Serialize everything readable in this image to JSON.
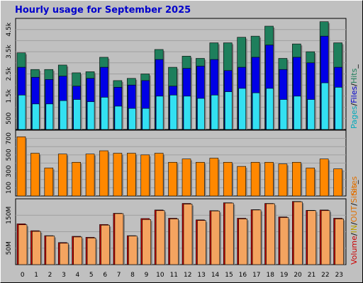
{
  "title": "Hourly usage for September 2025",
  "colors": {
    "background": "#c0c0c0",
    "plot": "#c0c0c0",
    "grid": "#a0a0a0",
    "hits": "#1e7f5c",
    "files": "#0000e6",
    "pages": "#33e0f2",
    "sites": "#ff8800",
    "kbytes_out": "#f4a460",
    "kbytes_in": "#cc0000",
    "title": "#0000cc",
    "legend_pages": "#00aabb",
    "legend_files": "#0000cc",
    "legend_hits": "#1e7f5c",
    "legend_sites": "#e07000",
    "legend_out": "#bba000",
    "legend_in": "#cc0000"
  },
  "chart_data": [
    {
      "type": "bar",
      "panel": "hits-files-pages",
      "categories": [
        "0",
        "1",
        "2",
        "3",
        "4",
        "5",
        "6",
        "7",
        "8",
        "9",
        "10",
        "11",
        "12",
        "13",
        "14",
        "15",
        "16",
        "17",
        "18",
        "19",
        "20",
        "21",
        "22",
        "23"
      ],
      "yticks": [
        "500",
        "1.5k",
        "2.5k",
        "3.5k",
        "4.5k"
      ],
      "ylim": [
        0,
        5000
      ],
      "series": [
        {
          "name": "Hits",
          "values": [
            3450,
            2700,
            2700,
            2900,
            2550,
            2600,
            3250,
            2200,
            2300,
            2500,
            3600,
            2800,
            3300,
            3200,
            3900,
            3900,
            4150,
            4200,
            4650,
            3200,
            3850,
            3500,
            4850,
            3900
          ]
        },
        {
          "name": "Files",
          "values": [
            2800,
            2350,
            2250,
            2400,
            1950,
            2300,
            2800,
            1900,
            2000,
            2200,
            3150,
            1950,
            2750,
            2850,
            3150,
            2650,
            2800,
            3250,
            3800,
            2700,
            3250,
            3000,
            4200,
            2800
          ]
        },
        {
          "name": "Pages",
          "values": [
            1550,
            1150,
            1150,
            1300,
            1350,
            1250,
            1450,
            1050,
            950,
            950,
            1500,
            1550,
            1500,
            1400,
            1550,
            1700,
            1850,
            1650,
            1850,
            1350,
            1500,
            1350,
            2100,
            1900
          ]
        }
      ],
      "legend": [
        "Pages",
        "Files",
        "Hits"
      ],
      "legend_separators": [
        "/",
        "/",
        "_"
      ],
      "grid": true
    },
    {
      "type": "bar",
      "panel": "sites",
      "categories": [
        "0",
        "1",
        "2",
        "3",
        "4",
        "5",
        "6",
        "7",
        "8",
        "9",
        "10",
        "11",
        "12",
        "13",
        "14",
        "15",
        "16",
        "17",
        "18",
        "19",
        "20",
        "21",
        "22",
        "23"
      ],
      "yticks": [
        "100",
        "300",
        "500",
        "700"
      ],
      "ylim": [
        0,
        800
      ],
      "series": [
        {
          "name": "Sites",
          "values": [
            720,
            520,
            340,
            510,
            410,
            510,
            550,
            520,
            520,
            500,
            520,
            410,
            450,
            410,
            460,
            410,
            360,
            410,
            410,
            390,
            410,
            340,
            450,
            330
          ]
        }
      ],
      "legend": [
        "Sites"
      ],
      "grid": true
    },
    {
      "type": "bar",
      "panel": "volume",
      "categories": [
        "0",
        "1",
        "2",
        "3",
        "4",
        "5",
        "6",
        "7",
        "8",
        "9",
        "10",
        "11",
        "12",
        "13",
        "14",
        "15",
        "16",
        "17",
        "18",
        "19",
        "20",
        "21",
        "22",
        "23"
      ],
      "yticks": [
        "50M",
        "150M"
      ],
      "ylim": [
        0,
        200
      ],
      "series": [
        {
          "name": "IN",
          "values": [
            124,
            103,
            88,
            67,
            86,
            83,
            122,
            156,
            88,
            140,
            166,
            141,
            186,
            136,
            164,
            188,
            141,
            167,
            186,
            145,
            192,
            165,
            166,
            141
          ]
        },
        {
          "name": "OUT",
          "values": [
            121,
            101,
            87,
            65,
            84,
            81,
            120,
            155,
            87,
            137,
            164,
            139,
            184,
            134,
            163,
            187,
            139,
            166,
            185,
            143,
            191,
            164,
            164,
            139
          ]
        }
      ],
      "legend": [
        "Volume",
        "IN",
        "OUT",
        "Sites"
      ],
      "legend_separators": [
        "/",
        "/",
        "/",
        "_"
      ],
      "grid": true
    }
  ]
}
